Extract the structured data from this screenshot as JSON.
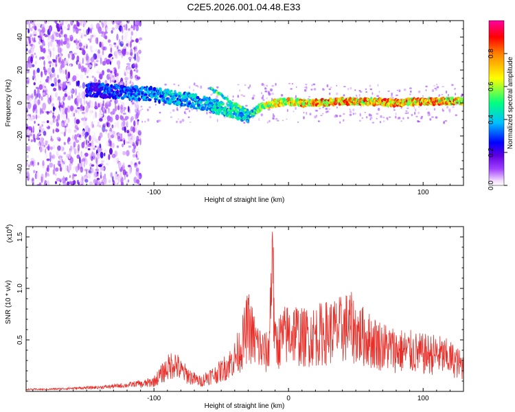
{
  "title": "C2E5.2026.001.04.48.E33",
  "chart_data": [
    {
      "type": "heatmap",
      "xlabel": "Height of straight line (km)",
      "ylabel": "Frequency (Hz)",
      "xlim": [
        -195,
        130
      ],
      "ylim": [
        -50,
        50
      ],
      "xticks": [
        -100,
        0,
        100
      ],
      "xtick_labels": [
        "-100",
        "",
        "100"
      ],
      "yticks": [
        -40,
        -20,
        0,
        20,
        40
      ],
      "ytick_labels": [
        "-40",
        "-20",
        "0",
        "20",
        "40"
      ],
      "colorbar": {
        "label": "Normalized spectral amplitude",
        "range": [
          0,
          1
        ],
        "ticks": [
          0,
          0.2,
          0.4,
          0.6,
          0.8
        ],
        "tick_labels": [
          "0.0",
          "0.2",
          "0.4",
          "0.6",
          "0.8"
        ],
        "colors": [
          "#ffffff",
          "#f0d8ff",
          "#a040ff",
          "#6000e0",
          "#0000ff",
          "#00c0ff",
          "#00ff80",
          "#ffff00",
          "#ff8000",
          "#ff0000",
          "#ff00a0"
        ]
      },
      "ridge": {
        "x": [
          -150,
          -130,
          -110,
          -90,
          -70,
          -55,
          -40,
          -30,
          -20,
          -10,
          0,
          10,
          20,
          40,
          60,
          80,
          100,
          120,
          130
        ],
        "y": [
          8,
          7,
          6,
          4,
          1,
          -2,
          -5,
          -8,
          -2,
          0,
          1,
          0,
          0,
          1,
          1,
          0,
          1,
          1,
          1
        ],
        "amplitude": [
          0.3,
          0.35,
          0.4,
          0.45,
          0.45,
          0.5,
          0.55,
          0.5,
          0.7,
          0.8,
          0.85,
          0.9,
          0.9,
          0.9,
          0.9,
          0.9,
          0.9,
          0.9,
          0.85
        ]
      }
    },
    {
      "type": "line",
      "xlabel": "Height of straight line (km)",
      "ylabel": "SNR (10 * v/v)",
      "y_multiplier": "(x10",
      "y_multiplier_exp": "4",
      "xlim": [
        -195,
        130
      ],
      "ylim": [
        0,
        1.6
      ],
      "xticks": [
        -100,
        0,
        100
      ],
      "xtick_labels": [
        "-100",
        "0",
        "100"
      ],
      "yticks": [
        0.5,
        1.0,
        1.5
      ],
      "ytick_labels": [
        "0.5",
        "1.0",
        "1.5"
      ],
      "color": "#e8302a",
      "x": [
        -195,
        -180,
        -160,
        -140,
        -120,
        -110,
        -100,
        -95,
        -90,
        -85,
        -80,
        -75,
        -70,
        -65,
        -60,
        -55,
        -50,
        -45,
        -40,
        -35,
        -30,
        -25,
        -20,
        -15,
        -12,
        -10,
        -5,
        0,
        5,
        10,
        20,
        30,
        40,
        45,
        50,
        60,
        70,
        80,
        90,
        100,
        110,
        120,
        130
      ],
      "y": [
        0.02,
        0.02,
        0.03,
        0.04,
        0.06,
        0.08,
        0.12,
        0.2,
        0.28,
        0.35,
        0.25,
        0.2,
        0.15,
        0.12,
        0.18,
        0.2,
        0.25,
        0.32,
        0.4,
        0.55,
        0.8,
        0.6,
        0.5,
        0.45,
        1.55,
        0.55,
        0.65,
        0.7,
        0.72,
        0.65,
        0.68,
        0.72,
        0.75,
        0.8,
        0.72,
        0.62,
        0.55,
        0.5,
        0.48,
        0.45,
        0.45,
        0.4,
        0.3
      ]
    }
  ]
}
